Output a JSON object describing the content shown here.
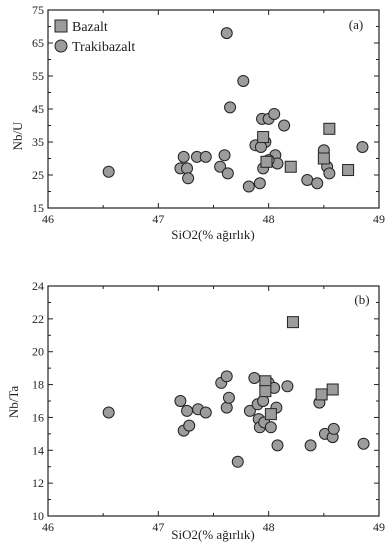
{
  "chart_data": [
    {
      "type": "scatter",
      "panel_label": "(a)",
      "xlabel": "SiO2(% ağırlık)",
      "ylabel": "Nb/U",
      "xlim": [
        46,
        49
      ],
      "ylim": [
        15,
        75
      ],
      "xticks": [
        "46",
        "47",
        "48",
        "49"
      ],
      "yticks": [
        "15",
        "25",
        "35",
        "45",
        "55",
        "65",
        "75"
      ],
      "legend": {
        "placement": "top-left",
        "entries": [
          {
            "name": "Bazalt",
            "marker": "square"
          },
          {
            "name": "Trakibazalt",
            "marker": "circle"
          }
        ]
      },
      "series": [
        {
          "name": "Bazalt",
          "marker": "square",
          "points": [
            [
              47.95,
              36.5
            ],
            [
              47.98,
              29.0
            ],
            [
              48.2,
              27.5
            ],
            [
              48.55,
              39.0
            ],
            [
              48.5,
              30.0
            ],
            [
              48.72,
              26.5
            ]
          ]
        },
        {
          "name": "Trakibazalt",
          "marker": "circle",
          "points": [
            [
              46.55,
              26.0
            ],
            [
              47.2,
              27.0
            ],
            [
              47.23,
              30.5
            ],
            [
              47.26,
              27.0
            ],
            [
              47.27,
              24.0
            ],
            [
              47.35,
              30.5
            ],
            [
              47.43,
              30.5
            ],
            [
              47.56,
              27.5
            ],
            [
              47.6,
              31.0
            ],
            [
              47.62,
              68.0
            ],
            [
              47.63,
              25.5
            ],
            [
              47.65,
              45.5
            ],
            [
              47.77,
              53.5
            ],
            [
              47.82,
              21.5
            ],
            [
              47.88,
              34.0
            ],
            [
              47.92,
              22.5
            ],
            [
              47.95,
              27.0
            ],
            [
              47.94,
              42.0
            ],
            [
              47.97,
              35.0
            ],
            [
              48.0,
              42.0
            ],
            [
              48.05,
              43.5
            ],
            [
              48.06,
              31.0
            ],
            [
              48.08,
              28.5
            ],
            [
              48.14,
              40.0
            ],
            [
              48.35,
              23.5
            ],
            [
              48.44,
              22.5
            ],
            [
              48.5,
              32.5
            ],
            [
              48.53,
              27.5
            ],
            [
              48.55,
              25.5
            ],
            [
              48.85,
              33.5
            ],
            [
              48.0,
              29.5
            ],
            [
              47.93,
              33.5
            ]
          ]
        }
      ]
    },
    {
      "type": "scatter",
      "panel_label": "(b)",
      "xlabel": "SiO2(% ağırlık)",
      "ylabel": "Nb/Ta",
      "xlim": [
        46,
        49
      ],
      "ylim": [
        10,
        24
      ],
      "xticks": [
        "46",
        "47",
        "48",
        "49"
      ],
      "yticks": [
        "10",
        "12",
        "14",
        "16",
        "18",
        "20",
        "22",
        "24"
      ],
      "series": [
        {
          "name": "Bazalt",
          "marker": "square",
          "points": [
            [
              48.22,
              21.8
            ],
            [
              47.97,
              18.2
            ],
            [
              47.97,
              17.6
            ],
            [
              48.02,
              16.2
            ],
            [
              48.48,
              17.4
            ],
            [
              48.58,
              17.7
            ]
          ]
        },
        {
          "name": "Trakibazalt",
          "marker": "circle",
          "points": [
            [
              46.55,
              16.3
            ],
            [
              47.2,
              17.0
            ],
            [
              47.23,
              15.2
            ],
            [
              47.26,
              16.4
            ],
            [
              47.28,
              15.5
            ],
            [
              47.36,
              16.5
            ],
            [
              47.43,
              16.3
            ],
            [
              47.57,
              18.1
            ],
            [
              47.62,
              16.6
            ],
            [
              47.64,
              17.2
            ],
            [
              47.62,
              18.5
            ],
            [
              47.72,
              13.3
            ],
            [
              47.83,
              16.4
            ],
            [
              47.87,
              18.4
            ],
            [
              47.9,
              16.8
            ],
            [
              47.91,
              15.9
            ],
            [
              47.92,
              15.4
            ],
            [
              47.95,
              17.0
            ],
            [
              47.96,
              15.7
            ],
            [
              48.0,
              18.1
            ],
            [
              48.02,
              15.4
            ],
            [
              48.05,
              17.8
            ],
            [
              48.07,
              16.6
            ],
            [
              48.08,
              14.3
            ],
            [
              48.17,
              17.9
            ],
            [
              48.38,
              14.3
            ],
            [
              48.46,
              16.9
            ],
            [
              48.51,
              15.0
            ],
            [
              48.58,
              14.8
            ],
            [
              48.59,
              15.3
            ],
            [
              48.86,
              14.4
            ]
          ]
        }
      ]
    }
  ]
}
